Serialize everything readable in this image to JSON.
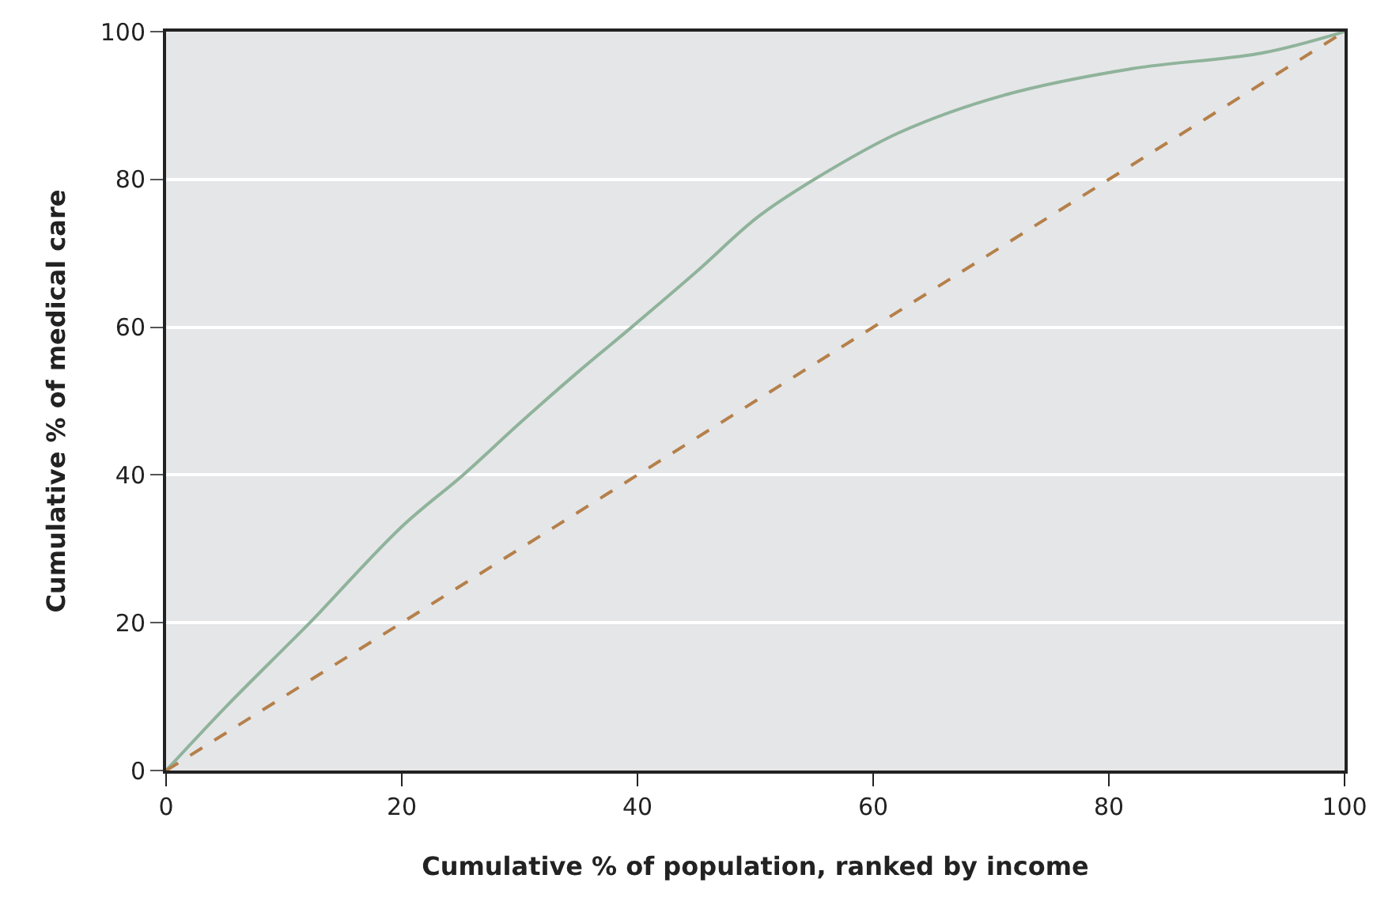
{
  "chart_data": {
    "type": "line",
    "xlabel": "Cumulative % of population, ranked by income",
    "ylabel": "Cumulative % of medical care",
    "series": [
      {
        "color": "#8fb39b",
        "line_style": "solid",
        "x": [
          0,
          5,
          10,
          12.2,
          20,
          25.2,
          30,
          35,
          39.5,
          45,
          50.2,
          55,
          62.3,
          71.1,
          82,
          93,
          100
        ],
        "values": [
          0,
          8.5,
          16.5,
          20,
          33,
          40,
          47,
          54,
          60,
          67.5,
          74.9,
          80,
          86.4,
          91.4,
          95,
          97.1,
          100
        ]
      },
      {
        "color": "#b5804a",
        "line_style": "dashed",
        "x": [
          0,
          100
        ],
        "values": [
          0,
          100
        ]
      }
    ],
    "xlim": [
      0,
      100
    ],
    "ylim": [
      0,
      100
    ],
    "xticks": [
      0,
      20,
      40,
      60,
      80,
      100
    ],
    "yticks": [
      0,
      20,
      40,
      60,
      80,
      100
    ],
    "grid": "y",
    "marker": "none"
  }
}
